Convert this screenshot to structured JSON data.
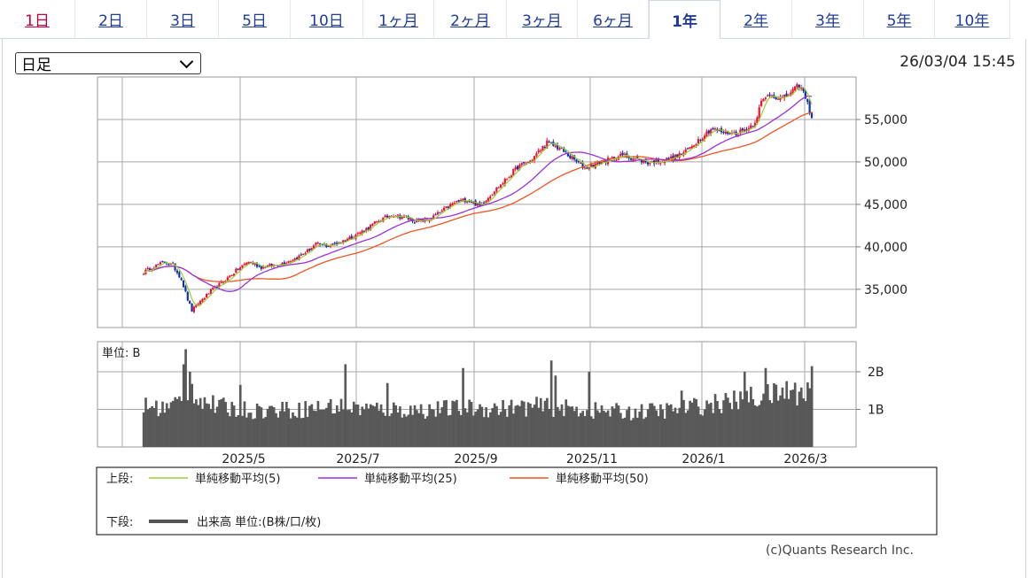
{
  "tabs": [
    {
      "label": "1日"
    },
    {
      "label": "2日"
    },
    {
      "label": "3日"
    },
    {
      "label": "5日"
    },
    {
      "label": "10日"
    },
    {
      "label": "1ヶ月"
    },
    {
      "label": "2ヶ月"
    },
    {
      "label": "3ヶ月"
    },
    {
      "label": "6ヶ月"
    },
    {
      "label": "1年"
    },
    {
      "label": "2年"
    },
    {
      "label": "3年"
    },
    {
      "label": "5年"
    },
    {
      "label": "10年"
    }
  ],
  "active_tab": "1年",
  "controls": {
    "period_value": "日足"
  },
  "timestamp": "26/03/04 15:45",
  "copyright": "(c)Quants Research Inc.",
  "chart_data": {
    "type": "candlestick",
    "x_tick_labels": [
      "2025/5",
      "2025/7",
      "2025/9",
      "2025/11",
      "2026/1",
      "2026/3"
    ],
    "price_axis": {
      "ticks": [
        35000,
        40000,
        45000,
        50000,
        55000
      ],
      "labels": [
        "35,000",
        "40,000",
        "45,000",
        "50,000",
        "55,000"
      ],
      "range": [
        30500,
        60000
      ]
    },
    "volume_axis": {
      "ticks": [
        1,
        2
      ],
      "labels": [
        "1B",
        "2B"
      ],
      "range": [
        0,
        2.8
      ],
      "unit_label": "単位: B"
    },
    "legend": {
      "upper_label": "上段:",
      "lower_label": "下段:",
      "items": [
        {
          "name": "単純移動平均(5)",
          "color": "#9acd32"
        },
        {
          "name": "単純移動平均(25)",
          "color": "#9b30d9"
        },
        {
          "name": "単純移動平均(50)",
          "color": "#ee5522"
        }
      ],
      "volume_item": {
        "name": "出来高 単位:(B株/口/枚)",
        "color": "#555555"
      }
    },
    "colors": {
      "up": "#ee1133",
      "down": "#1133aa",
      "volume": "#595959",
      "grid": "#999999"
    },
    "price_anchors": [
      [
        0,
        37000
      ],
      [
        4,
        37600
      ],
      [
        10,
        38200
      ],
      [
        14,
        37800
      ],
      [
        18,
        36200
      ],
      [
        21,
        33800
      ],
      [
        23,
        32500
      ],
      [
        27,
        33600
      ],
      [
        32,
        34800
      ],
      [
        38,
        35900
      ],
      [
        44,
        37200
      ],
      [
        50,
        38300
      ],
      [
        56,
        37600
      ],
      [
        64,
        37900
      ],
      [
        72,
        38600
      ],
      [
        78,
        39500
      ],
      [
        82,
        40300
      ],
      [
        88,
        40100
      ],
      [
        94,
        40600
      ],
      [
        100,
        41300
      ],
      [
        106,
        42100
      ],
      [
        112,
        43100
      ],
      [
        118,
        43800
      ],
      [
        124,
        43500
      ],
      [
        130,
        43000
      ],
      [
        136,
        43200
      ],
      [
        142,
        44200
      ],
      [
        148,
        45200
      ],
      [
        154,
        45600
      ],
      [
        160,
        44800
      ],
      [
        166,
        46400
      ],
      [
        172,
        47800
      ],
      [
        178,
        49400
      ],
      [
        184,
        50100
      ],
      [
        188,
        51200
      ],
      [
        192,
        52300
      ],
      [
        198,
        51600
      ],
      [
        204,
        50400
      ],
      [
        210,
        49300
      ],
      [
        216,
        49800
      ],
      [
        222,
        50300
      ],
      [
        228,
        50800
      ],
      [
        234,
        50400
      ],
      [
        240,
        49900
      ],
      [
        246,
        50100
      ],
      [
        252,
        50500
      ],
      [
        258,
        51200
      ],
      [
        264,
        52600
      ],
      [
        270,
        53900
      ],
      [
        276,
        53500
      ],
      [
        282,
        53400
      ],
      [
        288,
        54000
      ],
      [
        291,
        54800
      ],
      [
        294,
        57000
      ],
      [
        298,
        58000
      ],
      [
        304,
        57400
      ],
      [
        308,
        58200
      ],
      [
        312,
        59000
      ],
      [
        314,
        58200
      ],
      [
        316,
        56800
      ],
      [
        318,
        55300
      ]
    ],
    "vol_anchors": [
      [
        0,
        1.05
      ],
      [
        12,
        1.0
      ],
      [
        18,
        1.25
      ],
      [
        22,
        1.55
      ],
      [
        26,
        1.3
      ],
      [
        34,
        1.05
      ],
      [
        50,
        0.95
      ],
      [
        70,
        0.95
      ],
      [
        90,
        1.05
      ],
      [
        110,
        0.98
      ],
      [
        130,
        0.95
      ],
      [
        150,
        1.0
      ],
      [
        170,
        1.0
      ],
      [
        190,
        1.05
      ],
      [
        210,
        0.95
      ],
      [
        230,
        0.9
      ],
      [
        250,
        0.95
      ],
      [
        270,
        1.1
      ],
      [
        290,
        1.25
      ],
      [
        300,
        1.35
      ],
      [
        310,
        1.4
      ],
      [
        318,
        1.5
      ]
    ],
    "vol_spikes": [
      [
        19,
        2.2
      ],
      [
        20,
        2.6
      ],
      [
        22,
        2.0
      ],
      [
        46,
        1.65
      ],
      [
        66,
        1.2
      ],
      [
        96,
        2.2
      ],
      [
        116,
        1.7
      ],
      [
        152,
        2.1
      ],
      [
        194,
        2.3
      ],
      [
        196,
        1.9
      ],
      [
        212,
        2.0
      ],
      [
        256,
        1.5
      ],
      [
        286,
        2.0
      ],
      [
        289,
        1.6
      ],
      [
        296,
        2.1
      ],
      [
        306,
        1.75
      ],
      [
        318,
        2.15
      ]
    ]
  }
}
